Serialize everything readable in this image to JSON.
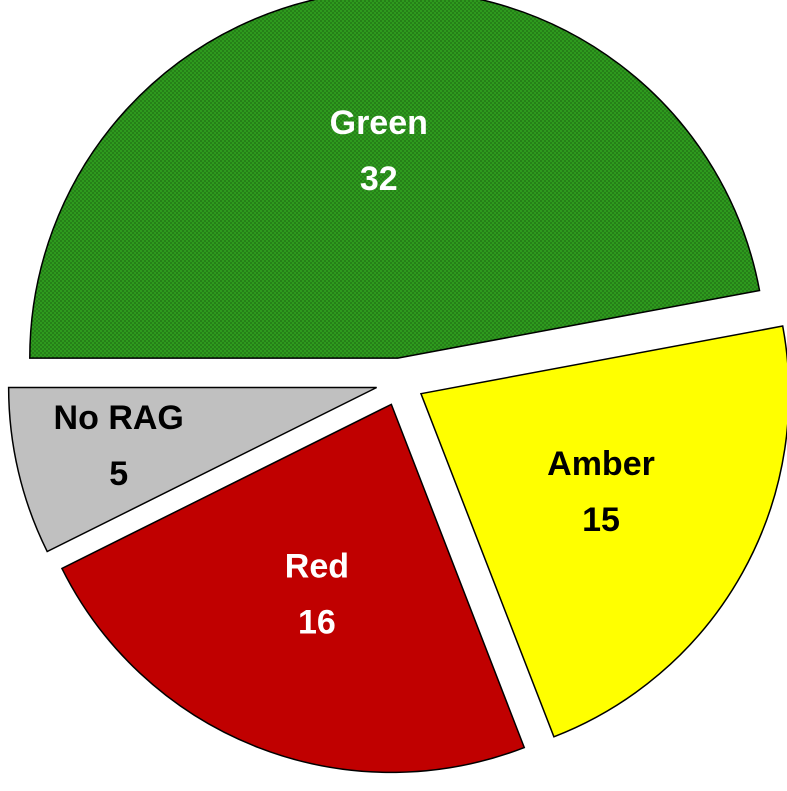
{
  "chart_data": {
    "type": "pie",
    "categories": [
      "Green",
      "Amber",
      "Red",
      "No RAG"
    ],
    "values": [
      32,
      15,
      16,
      5
    ],
    "colors": [
      "#2e9a1e",
      "#ffff00",
      "#c00000",
      "#c0c0c0"
    ],
    "label_colors": [
      "#ffffff",
      "#000000",
      "#ffffff",
      "#000000"
    ]
  }
}
